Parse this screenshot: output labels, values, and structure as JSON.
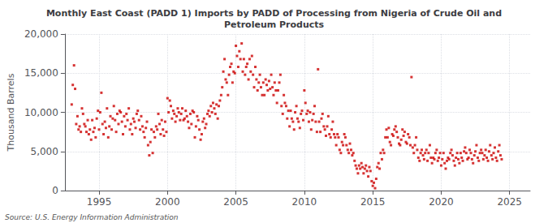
{
  "chart_data": {
    "type": "scatter",
    "title": "Monthly East Coast (PADD 1) Imports by PADD of Processing from Nigeria of Crude Oil and\nPetroleum Products",
    "ylabel": "Thousand Barrels",
    "annotation": "Source: U.S. Energy Information Administration",
    "color": "#cc0000",
    "marker": "square",
    "grid": true,
    "xlim": [
      1992.5,
      2026.5
    ],
    "xticks": [
      1995,
      2000,
      2005,
      2010,
      2015,
      2020,
      2025
    ],
    "ylim": [
      0,
      20000
    ],
    "yticks": [
      0,
      {
        "value": 5000,
        "label": "5,000"
      },
      {
        "value": 10000,
        "label": "10,000"
      },
      {
        "value": 15000,
        "label": "15,000"
      },
      {
        "value": 20000,
        "label": "20,000"
      }
    ],
    "x": [
      1993.0,
      1993.08,
      1993.17,
      1993.25,
      1993.33,
      1993.42,
      1993.5,
      1993.58,
      1993.67,
      1993.75,
      1993.83,
      1993.92,
      1994.0,
      1994.08,
      1994.17,
      1994.25,
      1994.33,
      1994.42,
      1994.5,
      1994.58,
      1994.67,
      1994.75,
      1994.83,
      1994.92,
      1995.0,
      1995.08,
      1995.17,
      1995.25,
      1995.33,
      1995.42,
      1995.5,
      1995.58,
      1995.67,
      1995.75,
      1995.83,
      1995.92,
      1996.0,
      1996.08,
      1996.17,
      1996.25,
      1996.33,
      1996.42,
      1996.5,
      1996.58,
      1996.67,
      1996.75,
      1996.83,
      1996.92,
      1997.0,
      1997.08,
      1997.17,
      1997.25,
      1997.33,
      1997.42,
      1997.5,
      1997.58,
      1997.67,
      1997.75,
      1997.83,
      1997.92,
      1998.0,
      1998.08,
      1998.17,
      1998.25,
      1998.33,
      1998.42,
      1998.5,
      1998.58,
      1998.67,
      1998.75,
      1998.83,
      1998.92,
      1999.0,
      1999.08,
      1999.17,
      1999.25,
      1999.33,
      1999.42,
      1999.5,
      1999.58,
      1999.67,
      1999.75,
      1999.83,
      1999.92,
      2000.0,
      2000.08,
      2000.17,
      2000.25,
      2000.33,
      2000.42,
      2000.5,
      2000.58,
      2000.67,
      2000.75,
      2000.83,
      2000.92,
      2001.0,
      2001.08,
      2001.17,
      2001.25,
      2001.33,
      2001.42,
      2001.5,
      2001.58,
      2001.67,
      2001.75,
      2001.83,
      2001.92,
      2002.0,
      2002.08,
      2002.17,
      2002.25,
      2002.33,
      2002.42,
      2002.5,
      2002.58,
      2002.67,
      2002.75,
      2002.83,
      2002.92,
      2003.0,
      2003.08,
      2003.17,
      2003.25,
      2003.33,
      2003.42,
      2003.5,
      2003.58,
      2003.67,
      2003.75,
      2003.83,
      2003.92,
      2004.0,
      2004.08,
      2004.17,
      2004.25,
      2004.33,
      2004.42,
      2004.5,
      2004.58,
      2004.67,
      2004.75,
      2004.83,
      2004.92,
      2005.0,
      2005.08,
      2005.17,
      2005.25,
      2005.33,
      2005.42,
      2005.5,
      2005.58,
      2005.67,
      2005.75,
      2005.83,
      2005.92,
      2006.0,
      2006.08,
      2006.17,
      2006.25,
      2006.33,
      2006.42,
      2006.5,
      2006.58,
      2006.67,
      2006.75,
      2006.83,
      2006.92,
      2007.0,
      2007.08,
      2007.17,
      2007.25,
      2007.33,
      2007.42,
      2007.5,
      2007.58,
      2007.67,
      2007.75,
      2007.83,
      2007.92,
      2008.0,
      2008.08,
      2008.17,
      2008.25,
      2008.33,
      2008.42,
      2008.5,
      2008.58,
      2008.67,
      2008.75,
      2008.83,
      2008.92,
      2009.0,
      2009.08,
      2009.17,
      2009.25,
      2009.33,
      2009.42,
      2009.5,
      2009.58,
      2009.67,
      2009.75,
      2009.83,
      2009.92,
      2010.0,
      2010.08,
      2010.17,
      2010.25,
      2010.33,
      2010.42,
      2010.5,
      2010.58,
      2010.67,
      2010.75,
      2010.83,
      2010.92,
      2011.0,
      2011.08,
      2011.17,
      2011.25,
      2011.33,
      2011.42,
      2011.5,
      2011.58,
      2011.67,
      2011.75,
      2011.83,
      2011.92,
      2012.0,
      2012.08,
      2012.17,
      2012.25,
      2012.33,
      2012.42,
      2012.5,
      2012.58,
      2012.67,
      2012.75,
      2012.83,
      2012.92,
      2013.0,
      2013.08,
      2013.17,
      2013.25,
      2013.33,
      2013.42,
      2013.5,
      2013.58,
      2013.67,
      2013.75,
      2013.83,
      2013.92,
      2014.0,
      2014.08,
      2014.17,
      2014.25,
      2014.33,
      2014.42,
      2014.5,
      2014.58,
      2014.67,
      2014.75,
      2014.83,
      2014.92,
      2015.0,
      2015.08,
      2015.17,
      2015.25,
      2015.33,
      2015.42,
      2015.5,
      2015.58,
      2015.67,
      2015.75,
      2015.83,
      2015.92,
      2016.0,
      2016.08,
      2016.17,
      2016.25,
      2016.33,
      2016.42,
      2016.5,
      2016.58,
      2016.67,
      2016.75,
      2016.83,
      2016.92,
      2017.0,
      2017.08,
      2017.17,
      2017.25,
      2017.33,
      2017.42,
      2017.5,
      2017.58,
      2017.67,
      2017.75,
      2017.83,
      2017.92,
      2018.0,
      2018.08,
      2018.17,
      2018.25,
      2018.33,
      2018.42,
      2018.5,
      2018.58,
      2018.67,
      2018.75,
      2018.83,
      2018.92,
      2019.0,
      2019.08,
      2019.17,
      2019.25,
      2019.33,
      2019.42,
      2019.5,
      2019.58,
      2019.67,
      2019.75,
      2019.83,
      2019.92,
      2020.0,
      2020.08,
      2020.17,
      2020.25,
      2020.33,
      2020.42,
      2020.5,
      2020.58,
      2020.67,
      2020.75,
      2020.83,
      2020.92,
      2021.0,
      2021.08,
      2021.17,
      2021.25,
      2021.33,
      2021.42,
      2021.5,
      2021.58,
      2021.67,
      2021.75,
      2021.83,
      2021.92,
      2022.0,
      2022.08,
      2022.17,
      2022.25,
      2022.33,
      2022.42,
      2022.5,
      2022.58,
      2022.67,
      2022.75,
      2022.83,
      2022.92,
      2023.0,
      2023.08,
      2023.17,
      2023.25,
      2023.33,
      2023.42,
      2023.5,
      2023.58,
      2023.67,
      2023.75,
      2023.83,
      2023.92,
      2024.0,
      2024.08,
      2024.17,
      2024.25,
      2024.33,
      2024.42
    ],
    "values": [
      11000,
      13500,
      16000,
      13000,
      8500,
      9500,
      7800,
      8200,
      7500,
      10500,
      9800,
      8500,
      8200,
      7500,
      9000,
      7200,
      7800,
      6500,
      9000,
      7500,
      8000,
      6800,
      9200,
      10200,
      7800,
      10000,
      12500,
      8500,
      7200,
      8800,
      8000,
      10500,
      6800,
      8200,
      9500,
      7800,
      9200,
      10800,
      9000,
      7500,
      9800,
      8500,
      10200,
      10000,
      8800,
      7200,
      9500,
      8200,
      9800,
      9000,
      10500,
      7800,
      8500,
      7200,
      9200,
      8800,
      8000,
      9800,
      10200,
      9000,
      7800,
      9500,
      8200,
      7500,
      6800,
      8000,
      8800,
      5800,
      4500,
      6200,
      7800,
      4800,
      7500,
      6800,
      8200,
      7800,
      9800,
      8500,
      7200,
      9000,
      7800,
      7000,
      8800,
      7500,
      11800,
      10000,
      11500,
      10800,
      9200,
      10200,
      9800,
      8800,
      9500,
      10500,
      10000,
      9000,
      9800,
      10500,
      9000,
      9200,
      10200,
      9500,
      8800,
      8000,
      9800,
      8500,
      10200,
      10000,
      6800,
      8200,
      9500,
      9000,
      7800,
      6500,
      7200,
      8800,
      9200,
      8000,
      8500,
      9800,
      10200,
      9500,
      10800,
      10000,
      11200,
      10500,
      9800,
      11000,
      9200,
      10800,
      11500,
      12200,
      13200,
      15200,
      16800,
      14200,
      13800,
      12200,
      14800,
      15800,
      16200,
      13800,
      15200,
      15000,
      18500,
      17200,
      15800,
      17800,
      16800,
      18800,
      15200,
      16800,
      14800,
      15800,
      16200,
      14200,
      16800,
      15200,
      17200,
      14800,
      13200,
      15800,
      14200,
      12800,
      13800,
      14800,
      13200,
      12200,
      13800,
      12200,
      14200,
      13500,
      12800,
      14000,
      13000,
      14800,
      13200,
      12200,
      13800,
      12800,
      11200,
      12800,
      13800,
      14800,
      10800,
      9800,
      12200,
      11200,
      10800,
      9200,
      10200,
      8200,
      10200,
      9200,
      8800,
      7800,
      10000,
      10800,
      9200,
      8800,
      8000,
      9800,
      10200,
      9000,
      12800,
      11200,
      9800,
      10200,
      8800,
      10000,
      7800,
      9000,
      9800,
      10800,
      8800,
      7500,
      15500,
      8800,
      7500,
      9200,
      9800,
      8200,
      7800,
      7000,
      8200,
      9500,
      7200,
      6800,
      7800,
      8800,
      7200,
      6800,
      5800,
      7200,
      6800,
      5200,
      4800,
      6200,
      5800,
      7200,
      6800,
      5800,
      5200,
      4800,
      6000,
      5200,
      4500,
      4800,
      3800,
      3200,
      2800,
      2200,
      3200,
      2800,
      3500,
      3000,
      2200,
      2800,
      3200,
      2500,
      1800,
      3000,
      2500,
      1200,
      600,
      1000,
      300,
      1500,
      3000,
      3500,
      2800,
      4800,
      4000,
      5200,
      4800,
      6800,
      7800,
      6800,
      8000,
      6200,
      5800,
      7200,
      7000,
      7800,
      8200,
      7500,
      6800,
      6000,
      5800,
      6500,
      7800,
      7000,
      7500,
      6200,
      6000,
      7200,
      6800,
      5800,
      14500,
      5500,
      4800,
      5800,
      6800,
      5200,
      4200,
      3800,
      4800,
      5200,
      4500,
      4000,
      4800,
      5200,
      3800,
      4800,
      5800,
      4200,
      3500,
      4200,
      4000,
      4800,
      5200,
      3800,
      4200,
      4800,
      3200,
      4000,
      4800,
      3500,
      2800,
      3800,
      4200,
      4000,
      4800,
      5200,
      4500,
      3800,
      3200,
      4200,
      4800,
      4000,
      3500,
      4800,
      4200,
      3800,
      5000,
      5500,
      4800,
      4000,
      4200,
      5200,
      4800,
      4000,
      3500,
      4500,
      5000,
      5800,
      4200,
      3800,
      4800,
      5200,
      4800,
      4000,
      4500,
      5200,
      4200,
      3800,
      5000,
      5800,
      4500,
      4000,
      4800,
      5500,
      4200,
      3800,
      5000,
      5800,
      4500,
      4000
    ]
  }
}
